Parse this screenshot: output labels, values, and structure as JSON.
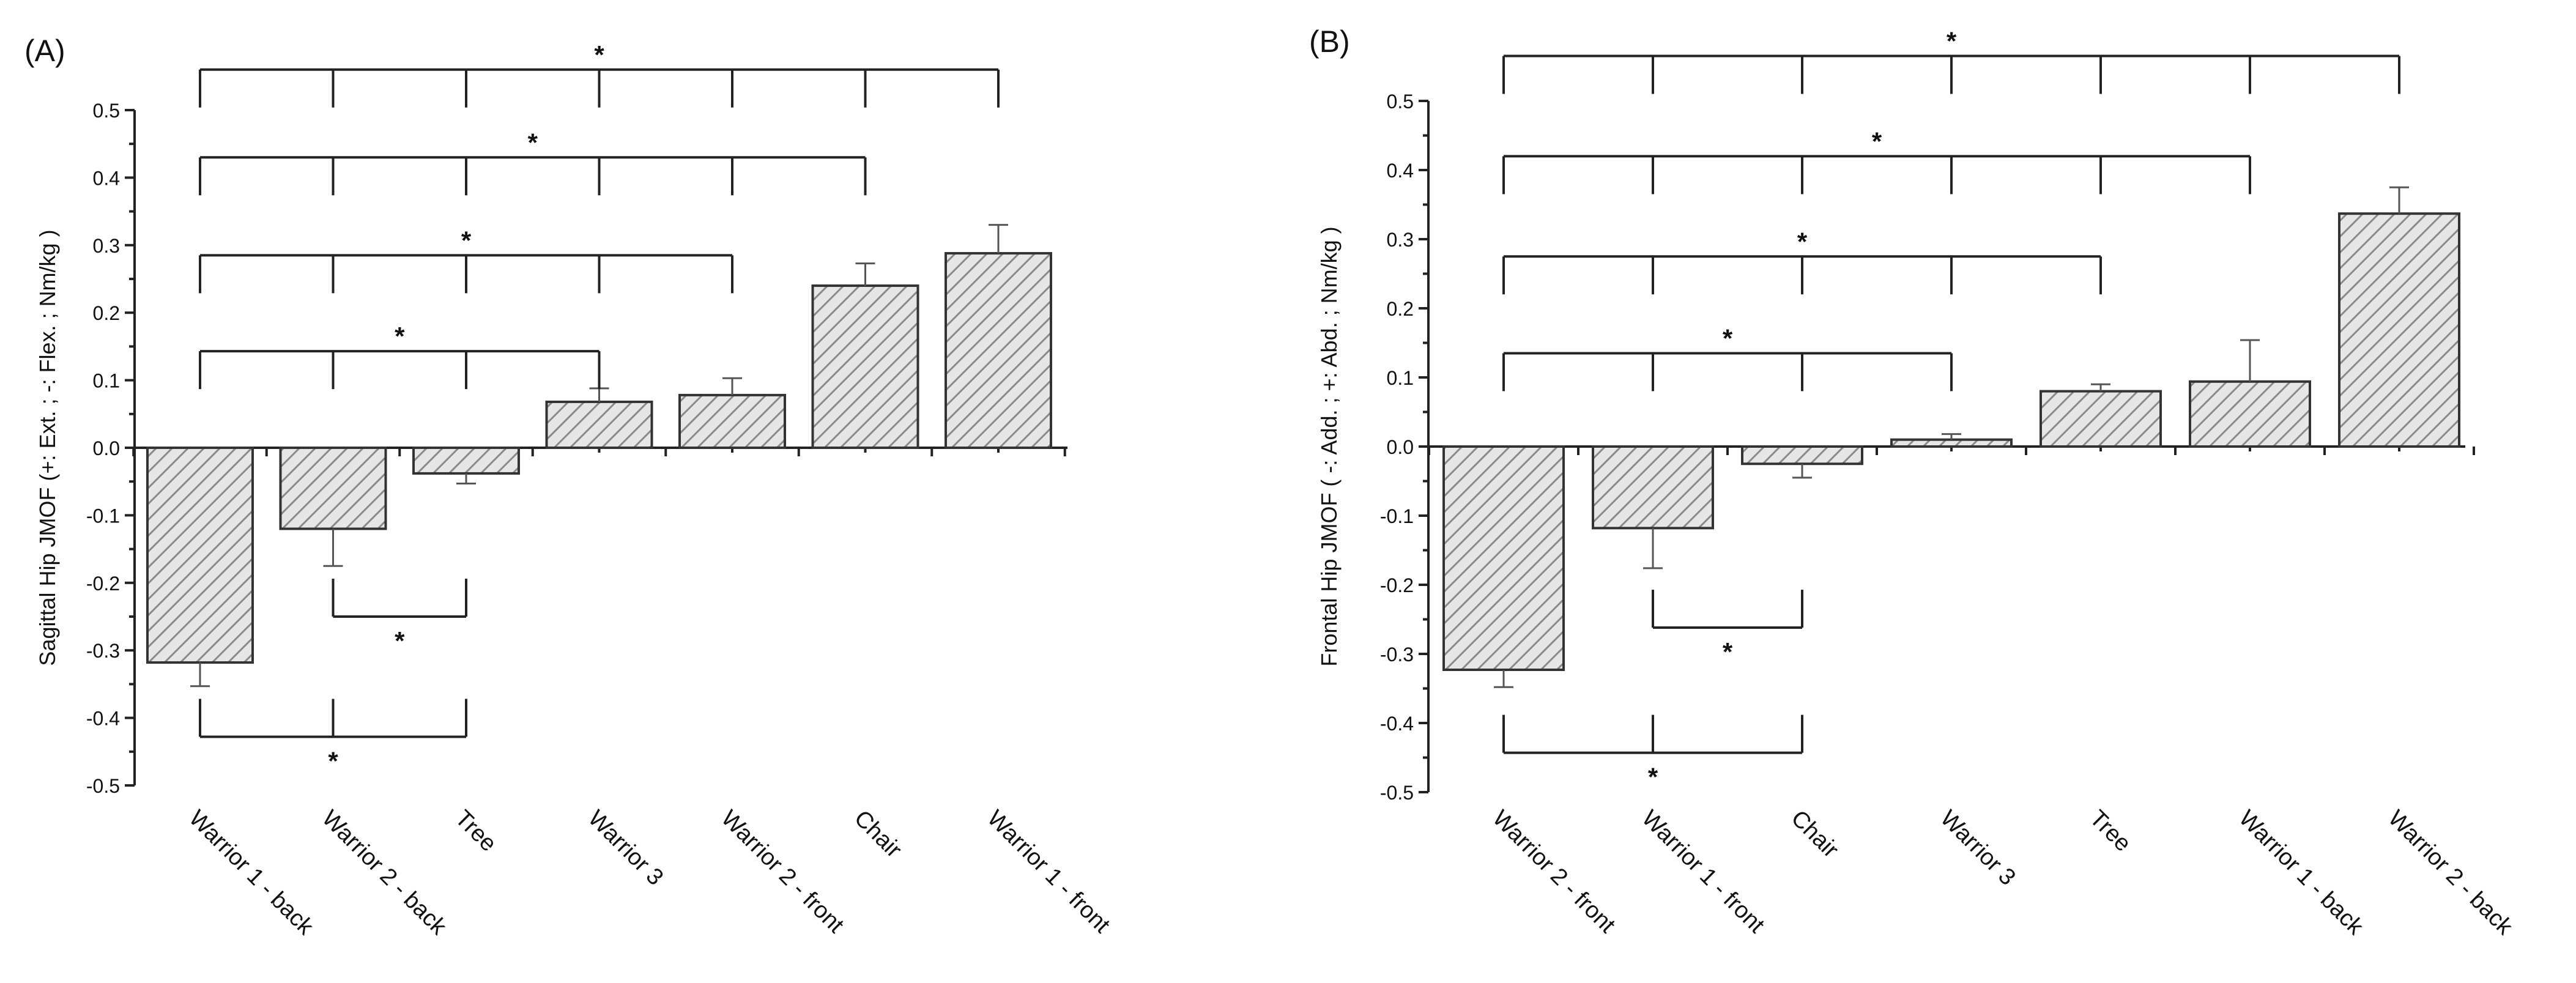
{
  "chart_data": [
    {
      "type": "bar",
      "panel_label": "(A)",
      "ylabel": "Sagittal Hip JMOF (+: Ext. ; -: Flex. ; Nm/kg )",
      "xlabel": "",
      "ylim": [
        -0.5,
        0.5
      ],
      "yticks": [
        "0.5",
        "0.4",
        "0.3",
        "0.2",
        "0.1",
        "0.0",
        "-0.1",
        "-0.2",
        "-0.3",
        "-0.4",
        "-0.5"
      ],
      "categories": [
        "Warrior 1 - back",
        "Warrior 2 - back",
        "Tree",
        "Warrior 3",
        "Warrior 2 - front",
        "Chair",
        "Warrior 1 - front"
      ],
      "values": [
        -0.318,
        -0.12,
        -0.038,
        0.068,
        0.078,
        0.24,
        0.288
      ],
      "errors": [
        0.035,
        0.055,
        0.015,
        0.02,
        0.025,
        0.033,
        0.042
      ],
      "significance": [
        {
          "from": 0,
          "to": 6,
          "label": "*",
          "position": "above",
          "level": 0.56
        },
        {
          "from": 0,
          "to": 5,
          "label": "*",
          "position": "above",
          "level": 0.43
        },
        {
          "from": 0,
          "to": 4,
          "label": "*",
          "position": "above",
          "level": 0.285
        },
        {
          "from": 0,
          "to": 3,
          "label": "*",
          "position": "above",
          "level": 0.143
        },
        {
          "from": 1,
          "to": 2,
          "label": "*",
          "position": "below",
          "level": -0.25
        },
        {
          "from": 0,
          "to": 2,
          "label": "*",
          "position": "below",
          "level": -0.428
        }
      ]
    },
    {
      "type": "bar",
      "panel_label": "(B)",
      "ylabel": "Frontal Hip JMOF ( -: Add. ; +: Abd. ; Nm/kg )",
      "xlabel": "",
      "ylim": [
        -0.5,
        0.5
      ],
      "yticks": [
        "0.5",
        "0.4",
        "0.3",
        "0.2",
        "0.1",
        "0.0",
        "-0.1",
        "-0.2",
        "-0.3",
        "-0.4",
        "-0.5"
      ],
      "categories": [
        "Warrior 2 - front",
        "Warrior 1 - front",
        "Chair",
        "Warrior 3",
        "Tree",
        "Warrior 1 - back",
        "Warrior 2 - back"
      ],
      "values": [
        -0.323,
        -0.118,
        -0.025,
        0.01,
        0.08,
        0.094,
        0.337
      ],
      "errors": [
        0.025,
        0.058,
        0.02,
        0.008,
        0.01,
        0.06,
        0.038
      ],
      "significance": [
        {
          "from": 0,
          "to": 6,
          "label": "*",
          "position": "above",
          "level": 0.565
        },
        {
          "from": 0,
          "to": 5,
          "label": "*",
          "position": "above",
          "level": 0.42
        },
        {
          "from": 0,
          "to": 4,
          "label": "*",
          "position": "above",
          "level": 0.275
        },
        {
          "from": 0,
          "to": 3,
          "label": "*",
          "position": "above",
          "level": 0.135
        },
        {
          "from": 1,
          "to": 2,
          "label": "*",
          "position": "below",
          "level": -0.262
        },
        {
          "from": 0,
          "to": 2,
          "label": "*",
          "position": "below",
          "level": -0.443
        }
      ]
    }
  ]
}
